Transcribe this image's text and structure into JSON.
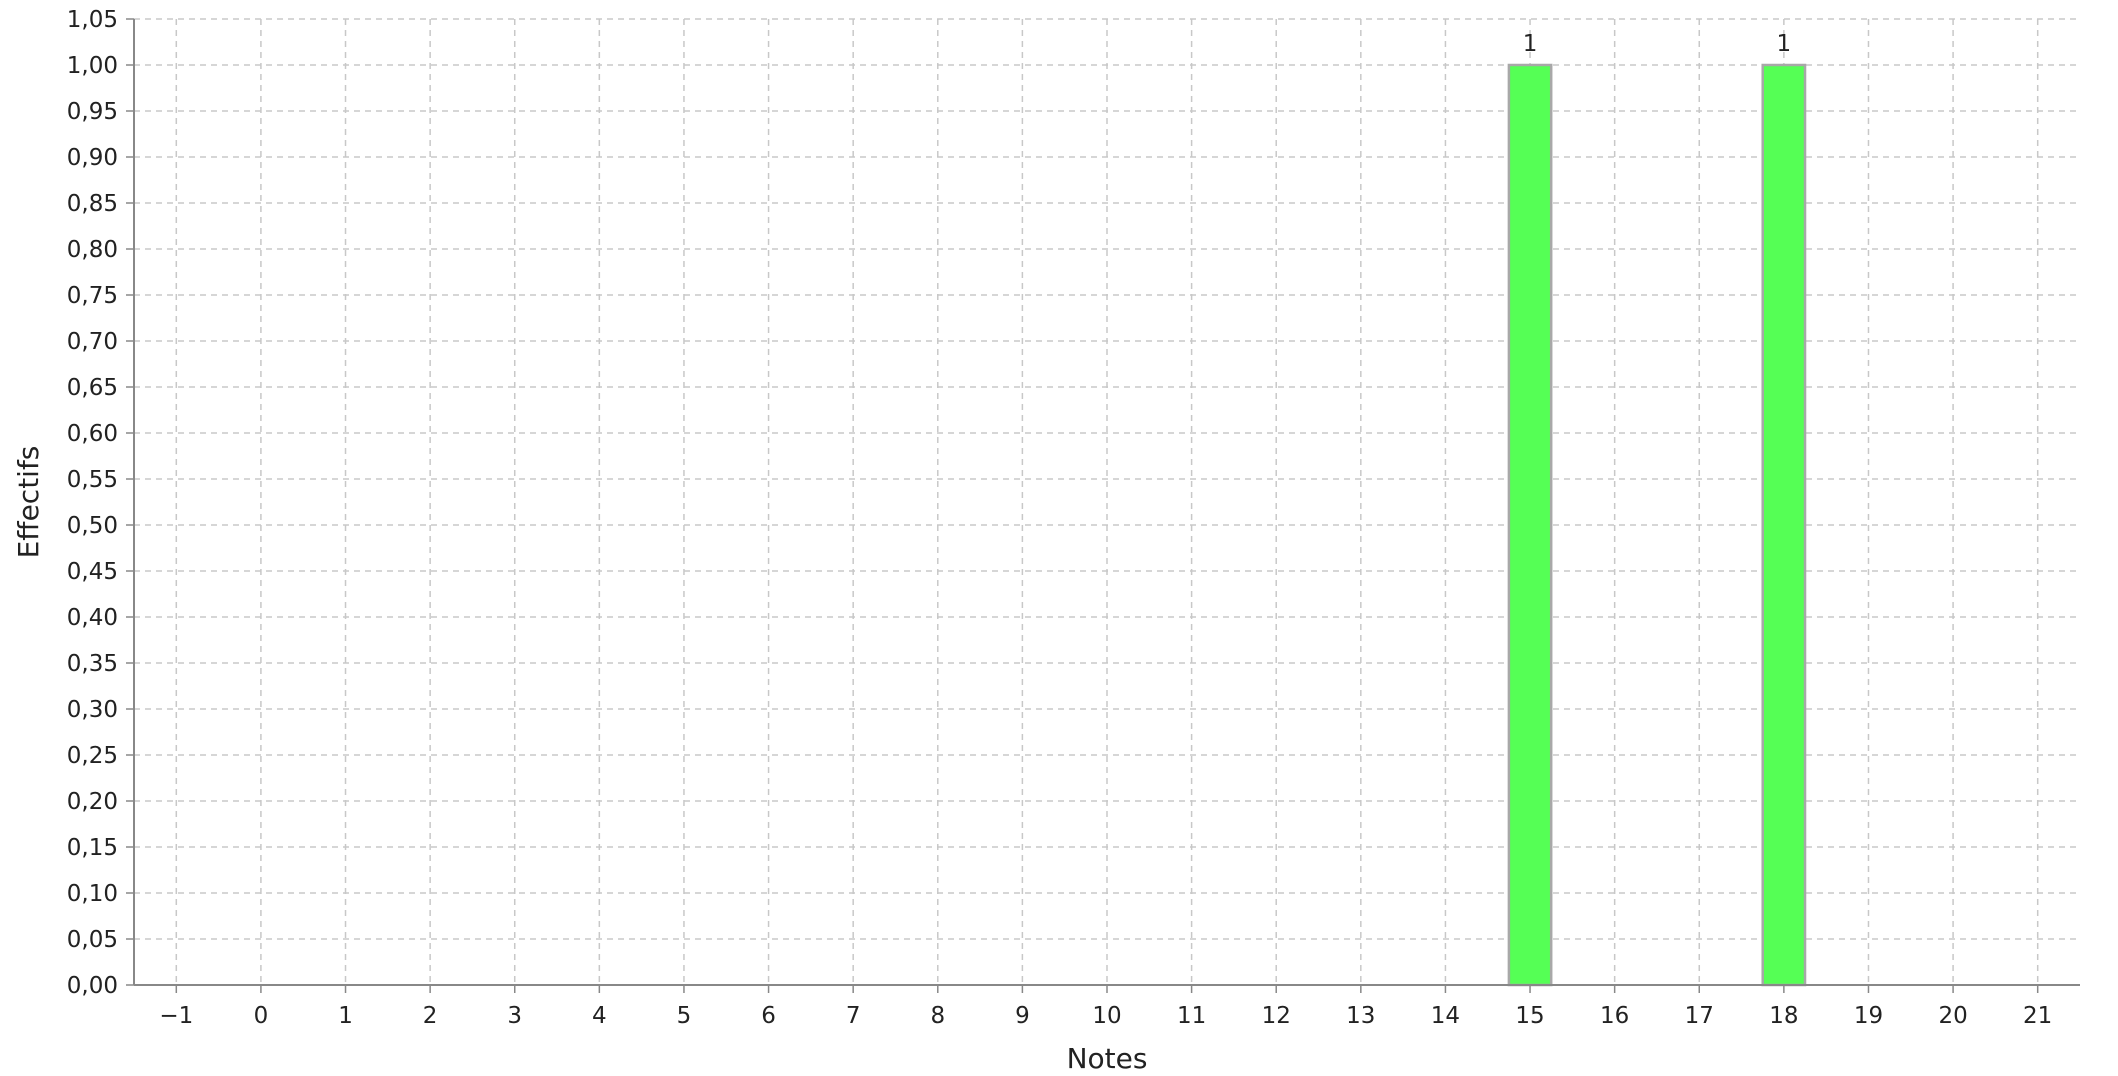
{
  "chart_data": {
    "type": "bar",
    "xlabel": "Notes",
    "ylabel": "Effectifs",
    "categories": [
      "-1",
      "0",
      "1",
      "2",
      "3",
      "4",
      "5",
      "6",
      "7",
      "8",
      "9",
      "10",
      "11",
      "12",
      "13",
      "14",
      "15",
      "16",
      "17",
      "18",
      "19",
      "20",
      "21"
    ],
    "x_tick_labels": [
      "−1",
      "0",
      "1",
      "2",
      "3",
      "4",
      "5",
      "6",
      "7",
      "8",
      "9",
      "10",
      "11",
      "12",
      "13",
      "14",
      "15",
      "16",
      "17",
      "18",
      "19",
      "20",
      "21"
    ],
    "values": [
      0,
      0,
      0,
      0,
      0,
      0,
      0,
      0,
      0,
      0,
      0,
      0,
      0,
      0,
      0,
      0,
      1,
      0,
      0,
      1,
      0,
      0,
      0
    ],
    "data_labels": [
      "",
      "",
      "",
      "",
      "",
      "",
      "",
      "",
      "",
      "",
      "",
      "",
      "",
      "",
      "",
      "",
      "1",
      "",
      "",
      "1",
      "",
      "",
      ""
    ],
    "ylim": [
      0,
      1.05
    ],
    "y_ticks": [
      0,
      0.05,
      0.1,
      0.15,
      0.2,
      0.25,
      0.3,
      0.35,
      0.4,
      0.45,
      0.5,
      0.55,
      0.6,
      0.65,
      0.7,
      0.75,
      0.8,
      0.85,
      0.9,
      0.95,
      1.0,
      1.05
    ],
    "y_tick_labels": [
      "0,00",
      "0,05",
      "0,10",
      "0,15",
      "0,20",
      "0,25",
      "0,30",
      "0,35",
      "0,40",
      "0,45",
      "0,50",
      "0,55",
      "0,60",
      "0,65",
      "0,70",
      "0,75",
      "0,80",
      "0,85",
      "0,90",
      "0,95",
      "1,00",
      "1,05"
    ],
    "grid": true,
    "legend": "none",
    "colors": {
      "bar_fill": "#55ff55",
      "bar_stroke": "#a8a8a8",
      "grid": "#c8c8c8",
      "axis": "#888888"
    }
  }
}
